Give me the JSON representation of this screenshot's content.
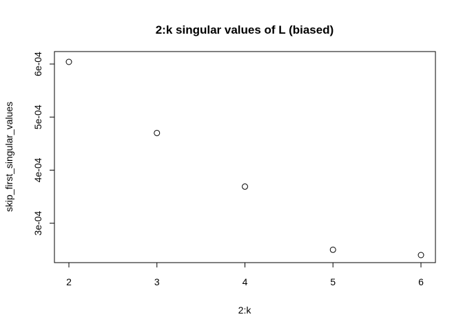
{
  "chart_data": {
    "type": "scatter",
    "title": "2:k singular values of L (biased)",
    "xlabel": "2:k",
    "ylabel": "skip_first_singular_values",
    "x": [
      2,
      3,
      4,
      5,
      6
    ],
    "y": [
      0.000604,
      0.00047,
      0.000369,
      0.00025,
      0.00024
    ],
    "xlim": [
      2,
      6
    ],
    "ylim": [
      0.00024,
      0.000604
    ],
    "x_ticks": [
      2,
      3,
      4,
      5,
      6
    ],
    "x_tick_labels": [
      "2",
      "3",
      "4",
      "5",
      "6"
    ],
    "y_ticks": [
      0.0003,
      0.0004,
      0.0005,
      0.0006
    ],
    "y_tick_labels": [
      "3e-04",
      "4e-04",
      "5e-04",
      "6e-04"
    ],
    "grid": false,
    "marker": "open-circle",
    "color": "#000000"
  }
}
